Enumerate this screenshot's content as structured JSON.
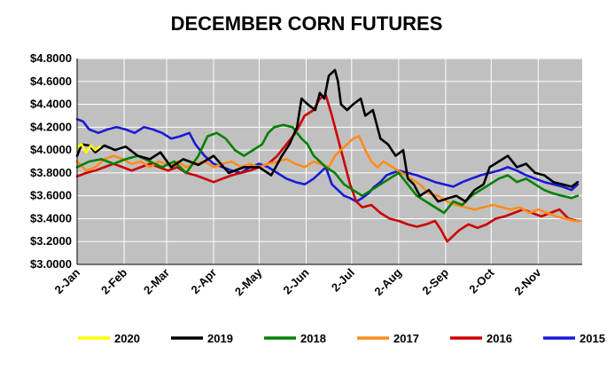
{
  "chart_data": {
    "type": "line",
    "title": "DECEMBER CORN FUTURES",
    "xlabel": "",
    "ylabel": "",
    "ylim": [
      3.0,
      4.8
    ],
    "y_ticks": [
      "$3.0000",
      "$3.2000",
      "$3.4000",
      "$3.6000",
      "$3.8000",
      "$4.0000",
      "$4.2000",
      "$4.4000",
      "$4.6000",
      "$4.8000"
    ],
    "y_tick_values": [
      3.0,
      3.2,
      3.4,
      3.6,
      3.8,
      4.0,
      4.2,
      4.4,
      4.6,
      4.8
    ],
    "x_ticks": [
      "2-Jan",
      "2-Feb",
      "2-Mar",
      "2-Apr",
      "2-May",
      "2-Jun",
      "2-Jul",
      "2-Aug",
      "2-Sep",
      "2-Oct",
      "2-Nov"
    ],
    "x_tick_days": [
      0,
      31,
      59,
      90,
      120,
      151,
      181,
      212,
      243,
      273,
      304
    ],
    "xlim": [
      0,
      333
    ],
    "plot_background": "#c0c0c0",
    "grid": true,
    "legend_position": "bottom",
    "series": [
      {
        "name": "2020",
        "color": "#ffff00",
        "points": [
          [
            0,
            4.02
          ],
          [
            3,
            4.05
          ],
          [
            6,
            3.98
          ],
          [
            9,
            4.04
          ],
          [
            12,
            4.0
          ],
          [
            15,
            4.03
          ]
        ]
      },
      {
        "name": "2019",
        "color": "#000000",
        "points": [
          [
            0,
            3.95
          ],
          [
            3,
            4.05
          ],
          [
            8,
            4.04
          ],
          [
            12,
            3.98
          ],
          [
            18,
            4.04
          ],
          [
            25,
            4.0
          ],
          [
            32,
            4.03
          ],
          [
            40,
            3.95
          ],
          [
            48,
            3.92
          ],
          [
            55,
            3.98
          ],
          [
            62,
            3.85
          ],
          [
            70,
            3.92
          ],
          [
            80,
            3.87
          ],
          [
            90,
            3.95
          ],
          [
            100,
            3.8
          ],
          [
            110,
            3.85
          ],
          [
            120,
            3.85
          ],
          [
            128,
            3.78
          ],
          [
            135,
            3.95
          ],
          [
            140,
            4.05
          ],
          [
            145,
            4.2
          ],
          [
            148,
            4.45
          ],
          [
            152,
            4.4
          ],
          [
            157,
            4.35
          ],
          [
            160,
            4.5
          ],
          [
            163,
            4.45
          ],
          [
            166,
            4.65
          ],
          [
            170,
            4.7
          ],
          [
            172,
            4.6
          ],
          [
            174,
            4.4
          ],
          [
            178,
            4.35
          ],
          [
            182,
            4.4
          ],
          [
            187,
            4.45
          ],
          [
            190,
            4.3
          ],
          [
            195,
            4.35
          ],
          [
            200,
            4.1
          ],
          [
            205,
            4.05
          ],
          [
            210,
            3.95
          ],
          [
            215,
            4.0
          ],
          [
            218,
            3.75
          ],
          [
            222,
            3.7
          ],
          [
            226,
            3.6
          ],
          [
            232,
            3.65
          ],
          [
            238,
            3.55
          ],
          [
            245,
            3.58
          ],
          [
            250,
            3.6
          ],
          [
            256,
            3.55
          ],
          [
            262,
            3.65
          ],
          [
            268,
            3.7
          ],
          [
            272,
            3.85
          ],
          [
            278,
            3.9
          ],
          [
            284,
            3.95
          ],
          [
            290,
            3.85
          ],
          [
            296,
            3.88
          ],
          [
            302,
            3.8
          ],
          [
            308,
            3.78
          ],
          [
            314,
            3.72
          ],
          [
            320,
            3.7
          ],
          [
            326,
            3.68
          ],
          [
            330,
            3.72
          ]
        ]
      },
      {
        "name": "2018",
        "color": "#008000",
        "points": [
          [
            0,
            3.85
          ],
          [
            8,
            3.9
          ],
          [
            16,
            3.92
          ],
          [
            24,
            3.88
          ],
          [
            32,
            3.92
          ],
          [
            40,
            3.95
          ],
          [
            48,
            3.9
          ],
          [
            56,
            3.85
          ],
          [
            64,
            3.9
          ],
          [
            72,
            3.8
          ],
          [
            80,
            3.95
          ],
          [
            86,
            4.12
          ],
          [
            92,
            4.15
          ],
          [
            98,
            4.1
          ],
          [
            104,
            4.0
          ],
          [
            110,
            3.95
          ],
          [
            116,
            4.0
          ],
          [
            122,
            4.05
          ],
          [
            126,
            4.15
          ],
          [
            130,
            4.2
          ],
          [
            136,
            4.22
          ],
          [
            142,
            4.2
          ],
          [
            148,
            4.1
          ],
          [
            152,
            4.05
          ],
          [
            156,
            3.95
          ],
          [
            160,
            3.9
          ],
          [
            164,
            3.85
          ],
          [
            170,
            3.8
          ],
          [
            176,
            3.7
          ],
          [
            182,
            3.65
          ],
          [
            188,
            3.6
          ],
          [
            194,
            3.65
          ],
          [
            200,
            3.7
          ],
          [
            206,
            3.75
          ],
          [
            212,
            3.8
          ],
          [
            218,
            3.7
          ],
          [
            224,
            3.6
          ],
          [
            230,
            3.55
          ],
          [
            236,
            3.5
          ],
          [
            242,
            3.45
          ],
          [
            248,
            3.55
          ],
          [
            254,
            3.52
          ],
          [
            260,
            3.6
          ],
          [
            266,
            3.65
          ],
          [
            272,
            3.7
          ],
          [
            278,
            3.75
          ],
          [
            284,
            3.78
          ],
          [
            290,
            3.72
          ],
          [
            296,
            3.75
          ],
          [
            302,
            3.7
          ],
          [
            308,
            3.65
          ],
          [
            314,
            3.62
          ],
          [
            320,
            3.6
          ],
          [
            326,
            3.58
          ],
          [
            330,
            3.6
          ]
        ]
      },
      {
        "name": "2017",
        "color": "#ff8c1a",
        "points": [
          [
            0,
            3.9
          ],
          [
            6,
            3.82
          ],
          [
            12,
            3.85
          ],
          [
            18,
            3.92
          ],
          [
            24,
            3.95
          ],
          [
            30,
            3.92
          ],
          [
            36,
            3.88
          ],
          [
            42,
            3.9
          ],
          [
            48,
            3.85
          ],
          [
            54,
            3.9
          ],
          [
            60,
            3.87
          ],
          [
            66,
            3.9
          ],
          [
            72,
            3.85
          ],
          [
            78,
            3.88
          ],
          [
            84,
            3.9
          ],
          [
            90,
            3.85
          ],
          [
            96,
            3.88
          ],
          [
            102,
            3.9
          ],
          [
            108,
            3.85
          ],
          [
            114,
            3.88
          ],
          [
            120,
            3.85
          ],
          [
            126,
            3.88
          ],
          [
            132,
            3.9
          ],
          [
            138,
            3.92
          ],
          [
            144,
            3.88
          ],
          [
            150,
            3.85
          ],
          [
            156,
            3.9
          ],
          [
            160,
            3.88
          ],
          [
            166,
            3.85
          ],
          [
            170,
            3.95
          ],
          [
            174,
            4.0
          ],
          [
            178,
            4.05
          ],
          [
            182,
            4.1
          ],
          [
            186,
            4.12
          ],
          [
            190,
            4.0
          ],
          [
            194,
            3.9
          ],
          [
            198,
            3.85
          ],
          [
            202,
            3.9
          ],
          [
            208,
            3.85
          ],
          [
            214,
            3.8
          ],
          [
            220,
            3.75
          ],
          [
            226,
            3.7
          ],
          [
            232,
            3.62
          ],
          [
            238,
            3.6
          ],
          [
            244,
            3.55
          ],
          [
            250,
            3.52
          ],
          [
            256,
            3.5
          ],
          [
            262,
            3.48
          ],
          [
            268,
            3.5
          ],
          [
            274,
            3.52
          ],
          [
            280,
            3.5
          ],
          [
            286,
            3.48
          ],
          [
            292,
            3.5
          ],
          [
            298,
            3.45
          ],
          [
            304,
            3.48
          ],
          [
            310,
            3.45
          ],
          [
            316,
            3.42
          ],
          [
            322,
            3.4
          ],
          [
            328,
            3.38
          ],
          [
            332,
            3.38
          ]
        ]
      },
      {
        "name": "2016",
        "color": "#cc0000",
        "points": [
          [
            0,
            3.77
          ],
          [
            6,
            3.8
          ],
          [
            12,
            3.82
          ],
          [
            18,
            3.85
          ],
          [
            24,
            3.88
          ],
          [
            30,
            3.85
          ],
          [
            36,
            3.82
          ],
          [
            42,
            3.85
          ],
          [
            48,
            3.88
          ],
          [
            54,
            3.85
          ],
          [
            60,
            3.82
          ],
          [
            66,
            3.85
          ],
          [
            72,
            3.8
          ],
          [
            78,
            3.78
          ],
          [
            84,
            3.75
          ],
          [
            90,
            3.72
          ],
          [
            96,
            3.75
          ],
          [
            102,
            3.78
          ],
          [
            108,
            3.8
          ],
          [
            114,
            3.82
          ],
          [
            120,
            3.85
          ],
          [
            126,
            3.88
          ],
          [
            132,
            3.95
          ],
          [
            138,
            4.05
          ],
          [
            144,
            4.15
          ],
          [
            150,
            4.3
          ],
          [
            156,
            4.35
          ],
          [
            160,
            4.45
          ],
          [
            164,
            4.48
          ],
          [
            168,
            4.3
          ],
          [
            172,
            4.1
          ],
          [
            176,
            3.9
          ],
          [
            180,
            3.7
          ],
          [
            184,
            3.55
          ],
          [
            188,
            3.5
          ],
          [
            194,
            3.52
          ],
          [
            200,
            3.45
          ],
          [
            206,
            3.4
          ],
          [
            212,
            3.38
          ],
          [
            218,
            3.35
          ],
          [
            224,
            3.33
          ],
          [
            230,
            3.35
          ],
          [
            236,
            3.38
          ],
          [
            240,
            3.3
          ],
          [
            244,
            3.2
          ],
          [
            248,
            3.25
          ],
          [
            252,
            3.3
          ],
          [
            258,
            3.35
          ],
          [
            264,
            3.32
          ],
          [
            270,
            3.35
          ],
          [
            276,
            3.4
          ],
          [
            282,
            3.42
          ],
          [
            288,
            3.45
          ],
          [
            294,
            3.48
          ],
          [
            300,
            3.45
          ],
          [
            306,
            3.42
          ],
          [
            312,
            3.45
          ],
          [
            318,
            3.48
          ],
          [
            324,
            3.4
          ],
          [
            330,
            3.38
          ]
        ]
      },
      {
        "name": "2015",
        "color": "#1a1ad6",
        "points": [
          [
            0,
            4.27
          ],
          [
            4,
            4.25
          ],
          [
            8,
            4.18
          ],
          [
            14,
            4.15
          ],
          [
            20,
            4.18
          ],
          [
            26,
            4.2
          ],
          [
            32,
            4.18
          ],
          [
            38,
            4.15
          ],
          [
            44,
            4.2
          ],
          [
            50,
            4.18
          ],
          [
            56,
            4.15
          ],
          [
            62,
            4.1
          ],
          [
            68,
            4.12
          ],
          [
            74,
            4.15
          ],
          [
            78,
            4.05
          ],
          [
            84,
            3.95
          ],
          [
            90,
            3.88
          ],
          [
            96,
            3.85
          ],
          [
            102,
            3.82
          ],
          [
            108,
            3.8
          ],
          [
            114,
            3.85
          ],
          [
            120,
            3.88
          ],
          [
            126,
            3.85
          ],
          [
            132,
            3.8
          ],
          [
            138,
            3.75
          ],
          [
            144,
            3.72
          ],
          [
            150,
            3.7
          ],
          [
            156,
            3.75
          ],
          [
            160,
            3.8
          ],
          [
            164,
            3.85
          ],
          [
            168,
            3.7
          ],
          [
            172,
            3.65
          ],
          [
            176,
            3.6
          ],
          [
            180,
            3.58
          ],
          [
            184,
            3.55
          ],
          [
            188,
            3.58
          ],
          [
            192,
            3.62
          ],
          [
            196,
            3.68
          ],
          [
            200,
            3.72
          ],
          [
            204,
            3.78
          ],
          [
            208,
            3.8
          ],
          [
            212,
            3.82
          ],
          [
            218,
            3.8
          ],
          [
            224,
            3.78
          ],
          [
            230,
            3.75
          ],
          [
            236,
            3.72
          ],
          [
            242,
            3.7
          ],
          [
            248,
            3.68
          ],
          [
            254,
            3.72
          ],
          [
            260,
            3.75
          ],
          [
            266,
            3.78
          ],
          [
            272,
            3.8
          ],
          [
            278,
            3.82
          ],
          [
            284,
            3.85
          ],
          [
            290,
            3.82
          ],
          [
            296,
            3.78
          ],
          [
            302,
            3.75
          ],
          [
            308,
            3.72
          ],
          [
            314,
            3.7
          ],
          [
            320,
            3.68
          ],
          [
            326,
            3.65
          ],
          [
            330,
            3.7
          ]
        ]
      }
    ]
  }
}
